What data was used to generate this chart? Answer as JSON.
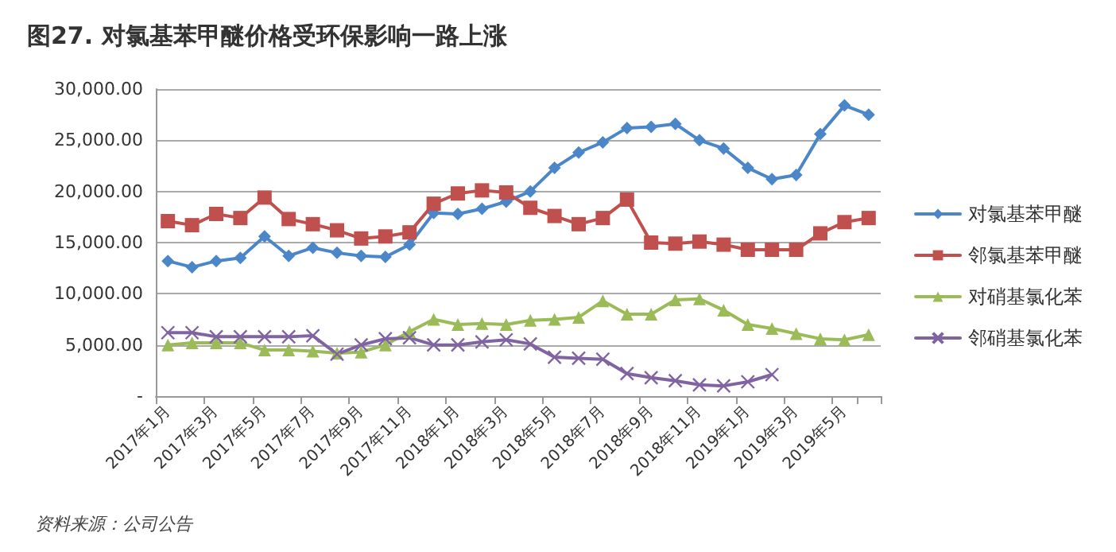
{
  "chart_data": {
    "type": "line",
    "title": "图27. 对氯基苯甲醚价格受环保影响一路上涨",
    "categories": [
      "2017年1月",
      null,
      "2017年3月",
      null,
      "2017年5月",
      null,
      "2017年7月",
      null,
      "2017年9月",
      null,
      "2017年11月",
      null,
      "2018年1月",
      null,
      "2018年3月",
      null,
      "2018年5月",
      null,
      "2018年7月",
      null,
      "2018年9月",
      null,
      "2018年11月",
      null,
      "2019年1月",
      null,
      "2019年3月",
      null,
      "2019年5月",
      null
    ],
    "series": [
      {
        "name": "对氯基苯甲醚",
        "color": "#4a86c8",
        "marker": "diamond",
        "values": [
          13200,
          12600,
          13200,
          13500,
          15600,
          13700,
          14500,
          14000,
          13700,
          13600,
          14800,
          17900,
          17800,
          18300,
          19000,
          20000,
          22300,
          23800,
          24800,
          26200,
          26300,
          26600,
          25000,
          24200,
          22300,
          21200,
          21600,
          25600,
          28400,
          27500
        ]
      },
      {
        "name": "邻氯基苯甲醚",
        "color": "#c0504d",
        "marker": "square",
        "values": [
          17100,
          16700,
          17800,
          17400,
          19400,
          17300,
          16800,
          16200,
          15400,
          15600,
          16000,
          18800,
          19800,
          20100,
          19900,
          18400,
          17600,
          16800,
          17400,
          19200,
          15000,
          14900,
          15100,
          14800,
          14300,
          14300,
          14300,
          15900,
          17000,
          17400
        ]
      },
      {
        "name": "对硝基氯化苯",
        "color": "#9bbb59",
        "marker": "triangle",
        "values": [
          5000,
          5200,
          5200,
          5200,
          4500,
          4500,
          4400,
          4200,
          4300,
          5000,
          6300,
          7500,
          7000,
          7100,
          7000,
          7400,
          7500,
          7700,
          9300,
          8000,
          8000,
          9400,
          9500,
          8400,
          7000,
          6600,
          6100,
          5600,
          5500,
          6000
        ]
      },
      {
        "name": "邻硝基氯化苯",
        "color": "#8064a2",
        "marker": "cross",
        "values": [
          6200,
          6200,
          5800,
          5800,
          5800,
          5800,
          5900,
          4100,
          5000,
          5600,
          5700,
          5000,
          5000,
          5300,
          5500,
          5100,
          3800,
          3700,
          3600,
          2200,
          1800,
          1500,
          1100,
          1000,
          1400,
          2100,
          null,
          null,
          null,
          null
        ]
      }
    ],
    "ylim": [
      0,
      30000
    ],
    "yticks": [
      {
        "value": 0,
        "label": "-"
      },
      {
        "value": 5000,
        "label": "5,000.00"
      },
      {
        "value": 10000,
        "label": "10,000.00"
      },
      {
        "value": 15000,
        "label": "15,000.00"
      },
      {
        "value": 20000,
        "label": "20,000.00"
      },
      {
        "value": 25000,
        "label": "25,000.00"
      },
      {
        "value": 30000,
        "label": "30,000.00"
      }
    ],
    "grid": "y",
    "legend": "right",
    "line_style": "solid",
    "annotations": [
      "资料来源：公司公告"
    ]
  }
}
